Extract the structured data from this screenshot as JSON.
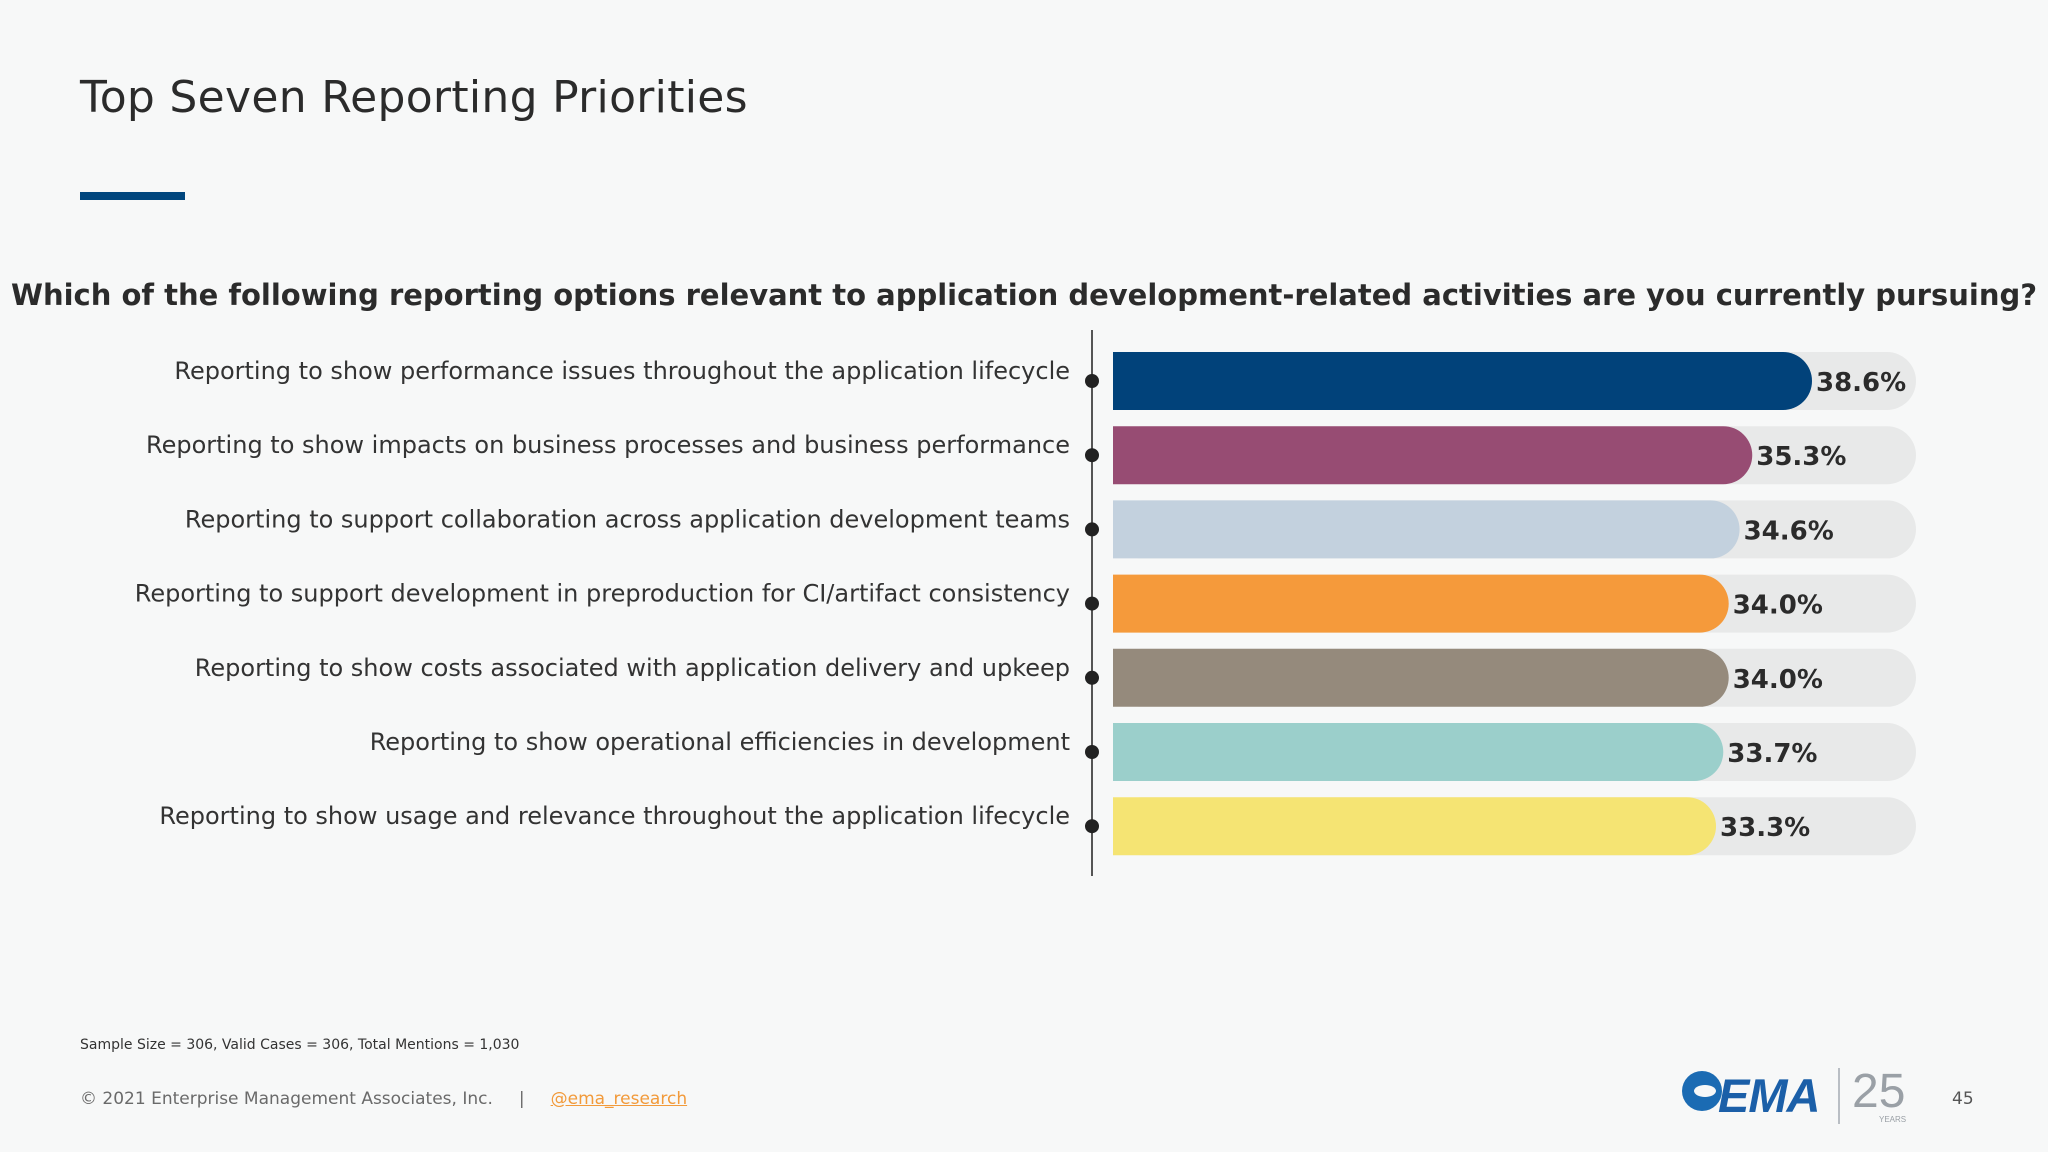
{
  "slide": {
    "title": "Top Seven Reporting Priorities",
    "question": "Which of the following reporting options relevant to application development-related activities are you currently pursuing?",
    "footnote": "Sample Size = 306, Valid Cases = 306, Total Mentions = 1,030",
    "copyright": "© 2021 Enterprise Management Associates, Inc.",
    "separator": "|",
    "handle": "@ema_research",
    "page_number": "45",
    "logo": {
      "brand": "EMA",
      "anniversary": "25",
      "anniversary_sub": "YEARS"
    }
  },
  "colors": {
    "accent": "#01467e",
    "track": "#e8e9e9"
  },
  "chart_data": {
    "type": "bar",
    "orientation": "horizontal",
    "title": "Which of the following reporting options relevant to application development-related activities are you currently pursuing?",
    "categories": [
      "Reporting to show performance issues throughout the application lifecycle",
      "Reporting to show impacts on business processes and business performance",
      "Reporting to support collaboration across application development teams",
      "Reporting to support development in preproduction for CI/artifact consistency",
      "Reporting to show costs associated with application delivery and upkeep",
      "Reporting to show operational efficiencies in development",
      "Reporting to show usage and relevance throughout the application lifecycle"
    ],
    "values": [
      38.6,
      35.3,
      34.6,
      34.0,
      34.0,
      33.7,
      33.3
    ],
    "labels": [
      "38.6%",
      "35.3%",
      "34.6%",
      "34.0%",
      "34.0%",
      "33.7%",
      "33.3%"
    ],
    "bar_colors": [
      "#01427a",
      "#974c73",
      "#c3d1de",
      "#f59a3b",
      "#958a7c",
      "#9bcfcb",
      "#f5e473"
    ],
    "xlim": [
      0,
      45
    ],
    "grid": false,
    "legend": false
  }
}
